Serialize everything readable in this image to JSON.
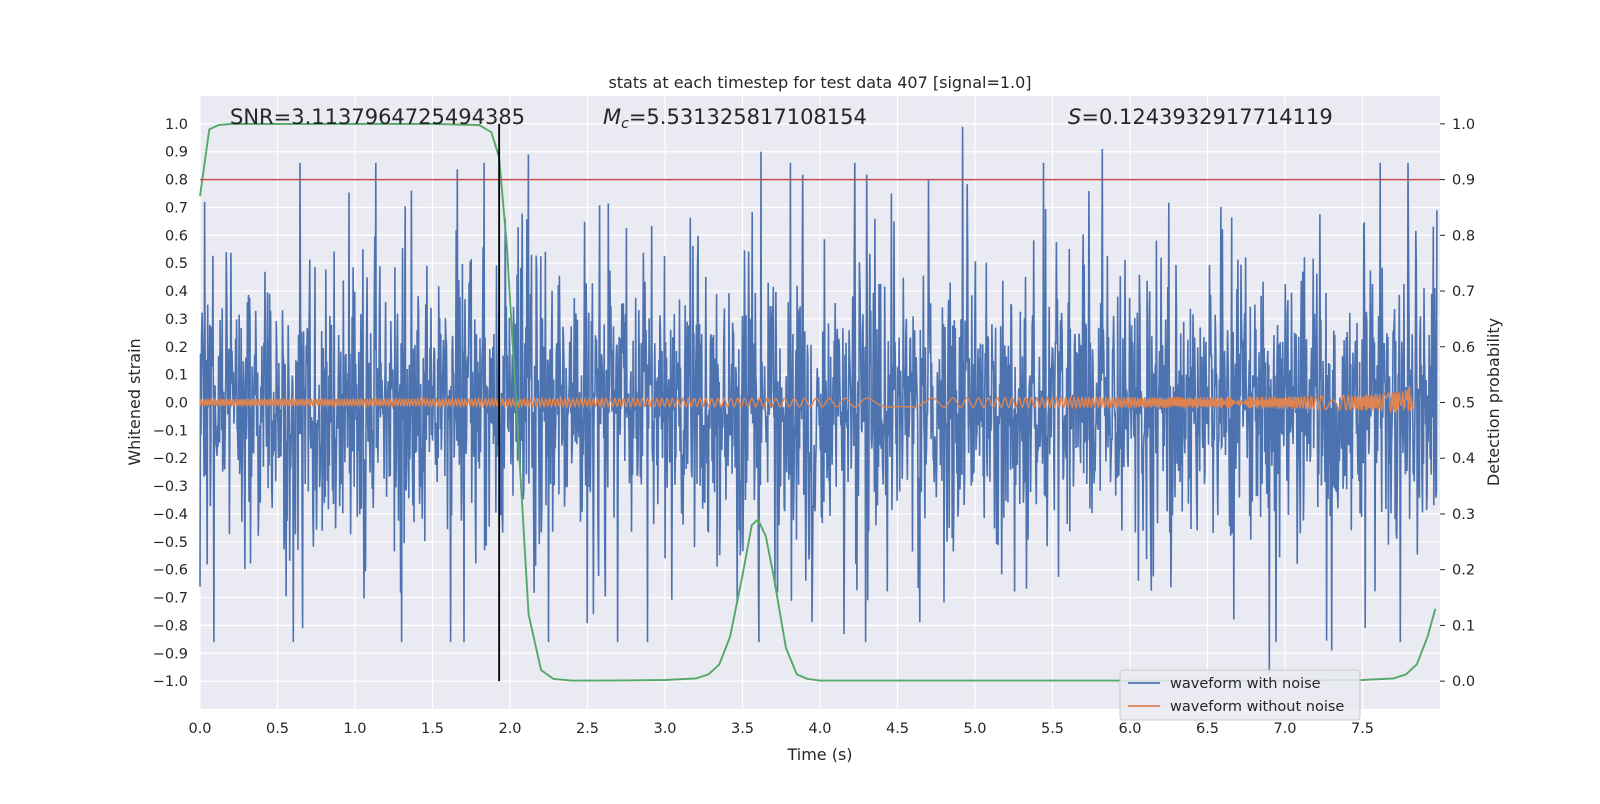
{
  "chart_data": {
    "type": "line",
    "title": "stats at each timestep for test data 407 [signal=1.0]",
    "xlabel": "Time (s)",
    "ylabel_left": "Whitened strain",
    "ylabel_right": "Detection probability",
    "xlim": [
      0.0,
      8.0
    ],
    "ylim_left": [
      -1.1,
      1.1
    ],
    "ylim_right": [
      -0.05,
      1.05
    ],
    "xticks": [
      "0.0",
      "0.5",
      "1.0",
      "1.5",
      "2.0",
      "2.5",
      "3.0",
      "3.5",
      "4.0",
      "4.5",
      "5.0",
      "5.5",
      "6.0",
      "6.5",
      "7.0",
      "7.5"
    ],
    "xtick_values": [
      0.0,
      0.5,
      1.0,
      1.5,
      2.0,
      2.5,
      3.0,
      3.5,
      4.0,
      4.5,
      5.0,
      5.5,
      6.0,
      6.5,
      7.0,
      7.5
    ],
    "yticks_left": [
      "−1.0",
      "−0.9",
      "−0.8",
      "−0.7",
      "−0.6",
      "−0.5",
      "−0.4",
      "−0.3",
      "−0.2",
      "−0.1",
      "0.0",
      "0.1",
      "0.2",
      "0.3",
      "0.4",
      "0.5",
      "0.6",
      "0.7",
      "0.8",
      "0.9",
      "1.0"
    ],
    "ytick_left_values": [
      -1.0,
      -0.9,
      -0.8,
      -0.7,
      -0.6,
      -0.5,
      -0.4,
      -0.3,
      -0.2,
      -0.1,
      0.0,
      0.1,
      0.2,
      0.3,
      0.4,
      0.5,
      0.6,
      0.7,
      0.8,
      0.9,
      1.0
    ],
    "yticks_right": [
      "0.0",
      "0.1",
      "0.2",
      "0.3",
      "0.4",
      "0.5",
      "0.6",
      "0.7",
      "0.8",
      "0.9",
      "1.0"
    ],
    "ytick_right_values": [
      0.0,
      0.1,
      0.2,
      0.3,
      0.4,
      0.5,
      0.6,
      0.7,
      0.8,
      0.9,
      1.0
    ],
    "annotations": {
      "snr": "SNR=3.1137964725494385",
      "mc_symbol": "M",
      "mc_sub": "c",
      "mc_value": "=5.531325817108154",
      "s_symbol": "S",
      "s_value": "=0.1243932917714119"
    },
    "series": [
      {
        "name": "waveform with noise",
        "color": "#4c72b0",
        "axis": "left",
        "kind": "noise",
        "duration": 7.98,
        "typical_amplitude": 0.5,
        "max_peak": 0.99,
        "min_trough": -0.97
      },
      {
        "name": "waveform without noise",
        "color": "#dd8452",
        "axis": "left",
        "kind": "chirp",
        "end_time": 7.83,
        "peak_amplitude": 0.09
      },
      {
        "name": "detection probability",
        "color": "#55a868",
        "axis": "right",
        "kind": "line",
        "x": [
          0.0,
          0.06,
          0.12,
          0.2,
          0.5,
          1.0,
          1.5,
          1.8,
          1.88,
          1.93,
          1.98,
          2.05,
          2.12,
          2.2,
          2.28,
          2.4,
          2.6,
          3.0,
          3.2,
          3.28,
          3.35,
          3.42,
          3.5,
          3.56,
          3.6,
          3.65,
          3.7,
          3.78,
          3.85,
          3.92,
          4.0,
          4.5,
          5.0,
          6.0,
          7.0,
          7.5,
          7.7,
          7.78,
          7.85,
          7.92,
          7.97
        ],
        "y": [
          0.87,
          0.99,
          0.998,
          1.0,
          1.0,
          1.0,
          1.0,
          0.998,
          0.985,
          0.94,
          0.78,
          0.45,
          0.12,
          0.02,
          0.004,
          0.001,
          0.001,
          0.002,
          0.005,
          0.012,
          0.03,
          0.08,
          0.19,
          0.28,
          0.29,
          0.26,
          0.19,
          0.06,
          0.012,
          0.004,
          0.001,
          0.001,
          0.001,
          0.001,
          0.001,
          0.002,
          0.005,
          0.012,
          0.03,
          0.08,
          0.13
        ]
      },
      {
        "name": "threshold",
        "color": "#c44e52",
        "axis": "left",
        "kind": "hline",
        "y": 0.8
      },
      {
        "name": "detection time",
        "color": "#000000",
        "axis": "left",
        "kind": "vline",
        "x": 1.93,
        "ymin": -1.0,
        "ymax": 1.0
      }
    ],
    "legend": {
      "position": "lower-right",
      "entries": [
        {
          "label": "waveform with noise",
          "color": "#4c72b0"
        },
        {
          "label": "waveform without noise",
          "color": "#dd8452"
        }
      ]
    },
    "grid": true,
    "background": "#eaeaf2"
  }
}
